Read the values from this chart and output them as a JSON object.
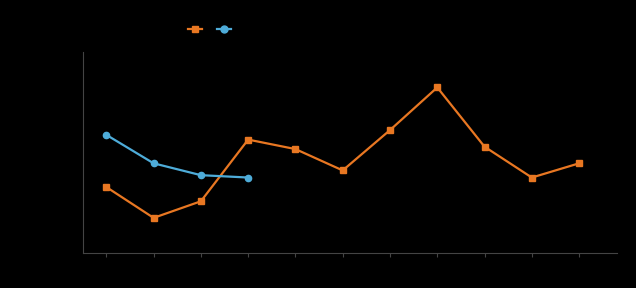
{
  "orange_x": [
    1,
    2,
    3,
    4,
    5,
    6,
    7,
    8,
    9,
    10,
    11
  ],
  "orange_y": [
    58,
    45,
    52,
    78,
    74,
    65,
    82,
    100,
    75,
    62,
    68
  ],
  "blue_x": [
    1,
    2,
    3,
    4
  ],
  "blue_y": [
    80,
    68,
    63,
    62
  ],
  "orange_color": "#E87722",
  "blue_color": "#4EACD9",
  "bg_color": "#000000",
  "spine_color": "#444444",
  "figsize": [
    6.36,
    2.88
  ],
  "dpi": 100,
  "xlim": [
    0.5,
    11.8
  ],
  "ylim": [
    30,
    115
  ]
}
